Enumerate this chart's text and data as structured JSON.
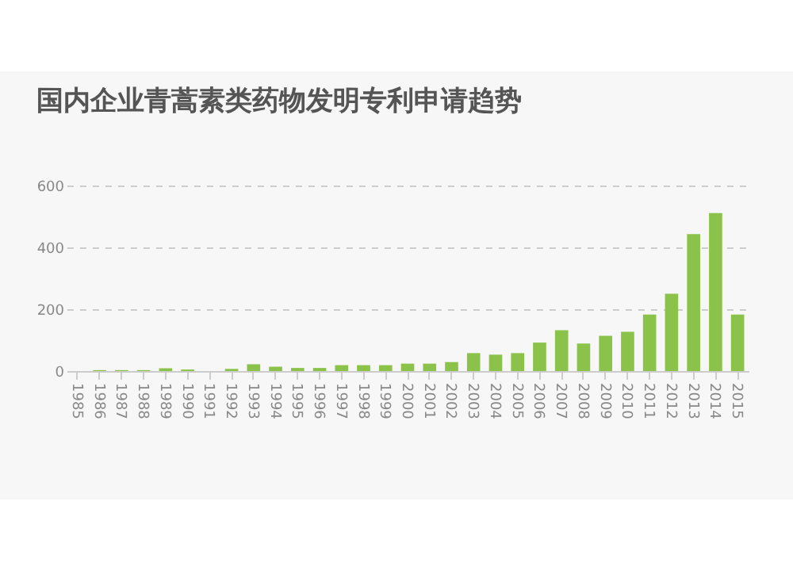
{
  "chart_data": {
    "type": "bar",
    "title": "国内企业青蒿素类药物发明专利申请趋势",
    "categories": [
      "1985",
      "1986",
      "1987",
      "1988",
      "1989",
      "1990",
      "1991",
      "1992",
      "1993",
      "1994",
      "1995",
      "1996",
      "1997",
      "1998",
      "1999",
      "2000",
      "2001",
      "2002",
      "2003",
      "2004",
      "2005",
      "2006",
      "2007",
      "2008",
      "2009",
      "2010",
      "2011",
      "2012",
      "2013",
      "2014",
      "2015"
    ],
    "values": [
      0,
      3,
      3,
      3,
      9,
      5,
      0,
      7,
      22,
      14,
      10,
      10,
      19,
      19,
      19,
      24,
      24,
      29,
      58,
      53,
      58,
      92,
      132,
      89,
      114,
      127,
      183,
      250,
      443,
      511,
      183
    ],
    "color": "#8bc34a",
    "ylim": [
      0,
      600
    ],
    "yticks": [
      0,
      200,
      400,
      600
    ],
    "grid": "y"
  }
}
